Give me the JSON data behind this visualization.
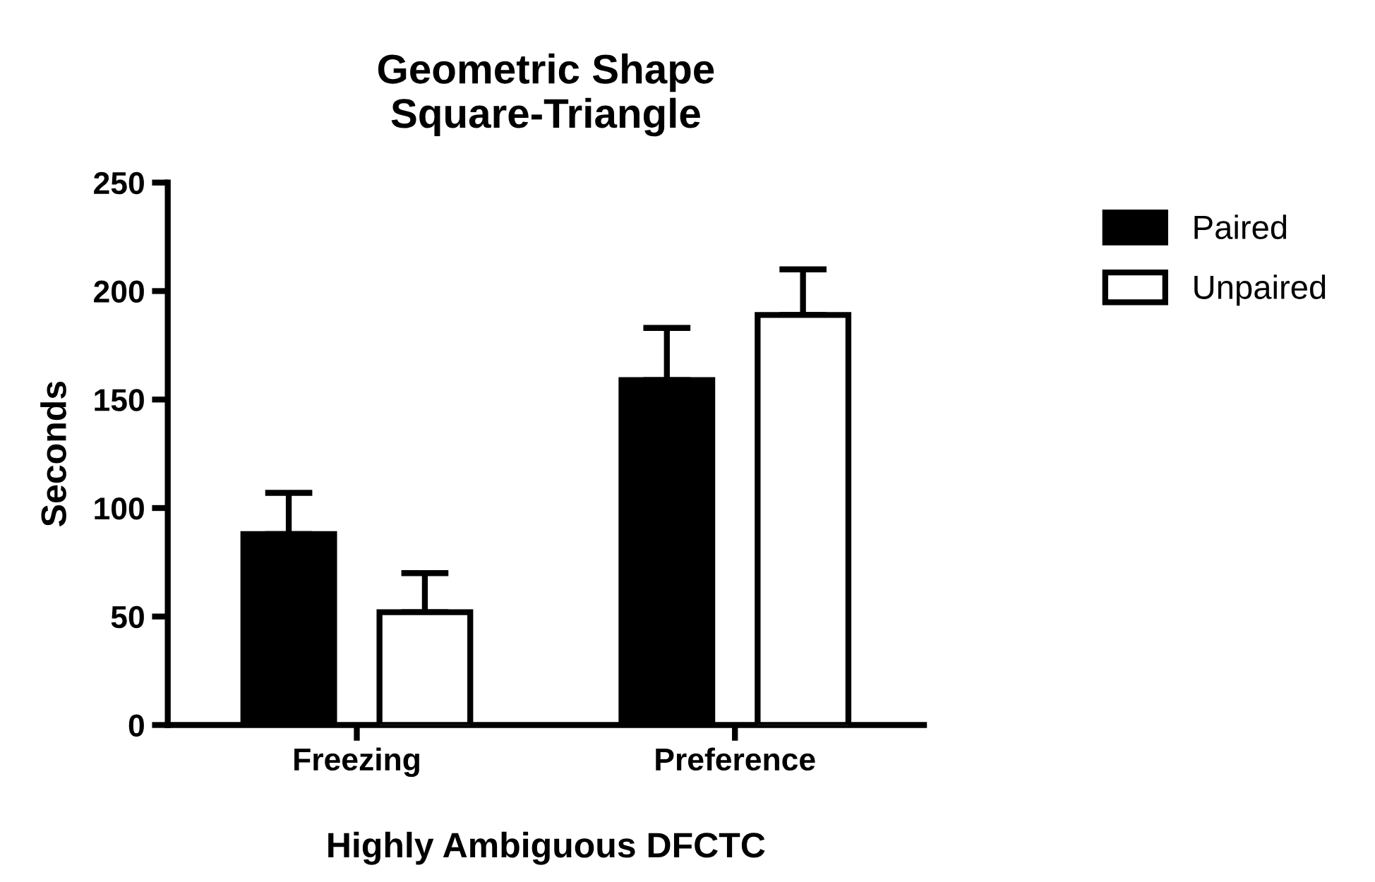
{
  "chart_data": {
    "type": "bar",
    "title": "Geometric Shape\nSquare-Triangle",
    "xlabel": "Highly Ambiguous DFCTC",
    "ylabel": "Seconds",
    "categories": [
      "Freezing",
      "Preference"
    ],
    "series": [
      {
        "name": "Paired",
        "color": "#000000",
        "values": [
          88,
          159
        ],
        "errors": [
          [
            88,
            107
          ],
          [
            159,
            183
          ]
        ]
      },
      {
        "name": "Unpaired",
        "color": "#ffffff",
        "values": [
          52,
          189
        ],
        "errors": [
          [
            52,
            70
          ],
          [
            189,
            210
          ]
        ]
      }
    ],
    "ylim": [
      0,
      250
    ],
    "yticks": [
      0,
      50,
      100,
      150,
      200,
      250
    ],
    "grid": false,
    "legend": "right"
  }
}
